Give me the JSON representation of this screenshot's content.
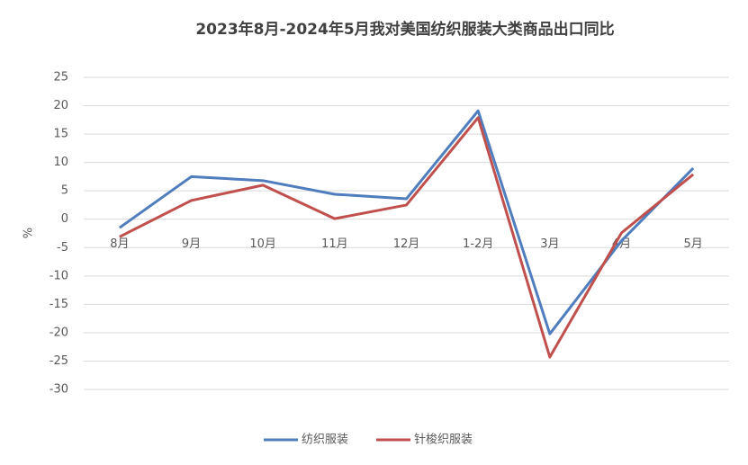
{
  "chart_data": {
    "type": "line",
    "title": "2023年8月-2024年5月我对美国纺织服装大类商品出口同比",
    "y_label": "%",
    "categories": [
      "8月",
      "9月",
      "10月",
      "11月",
      "12月",
      "1-2月",
      "3月",
      "4月",
      "5月"
    ],
    "series": [
      {
        "name": "纺织服装",
        "color": "#4f7dbd",
        "values": [
          -1.5,
          7.5,
          6.8,
          4.4,
          3.6,
          19.1,
          -20.2,
          -3.8,
          9.0
        ]
      },
      {
        "name": "针梭织服装",
        "color": "#c0504d",
        "values": [
          -3.1,
          3.3,
          6.0,
          0.1,
          2.5,
          17.9,
          -24.3,
          -2.4,
          7.9
        ]
      }
    ],
    "ylim": [
      -30,
      25
    ],
    "yticks": [
      -30,
      -25,
      -20,
      -15,
      -10,
      -5,
      0,
      5,
      10,
      15,
      20,
      25
    ],
    "grid": true
  }
}
